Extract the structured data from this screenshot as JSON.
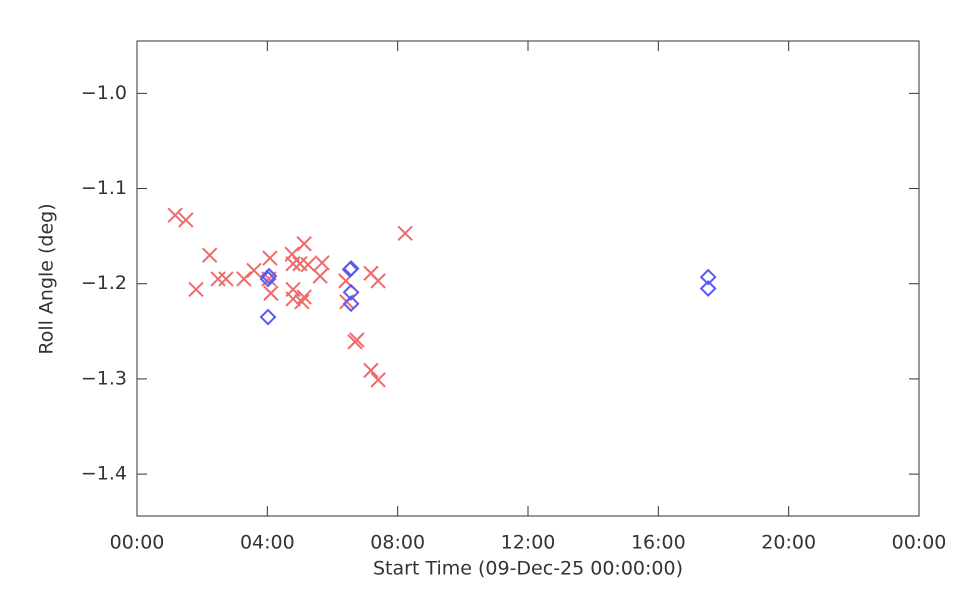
{
  "chart_data": {
    "type": "scatter",
    "xlabel": "Start Time (09-Dec-25 00:00:00)",
    "ylabel": "Roll Angle (deg)",
    "xlim": [
      0,
      24
    ],
    "xticks": [
      {
        "value": 0,
        "label": "00:00"
      },
      {
        "value": 4,
        "label": "04:00"
      },
      {
        "value": 8,
        "label": "08:00"
      },
      {
        "value": 12,
        "label": "12:00"
      },
      {
        "value": 16,
        "label": "16:00"
      },
      {
        "value": 20,
        "label": "20:00"
      },
      {
        "value": 24,
        "label": "00:00"
      }
    ],
    "ylim": [
      -1.444,
      -0.945
    ],
    "yticks": [
      {
        "value": -1.0,
        "label": "−1.0"
      },
      {
        "value": -1.1,
        "label": "−1.1"
      },
      {
        "value": -1.2,
        "label": "−1.2"
      },
      {
        "value": -1.3,
        "label": "−1.3"
      },
      {
        "value": -1.4,
        "label": "−1.4"
      }
    ],
    "series": [
      {
        "color": "#f06a6a",
        "marker": "x",
        "x": [
          1.17,
          1.5,
          1.81,
          2.23,
          2.49,
          2.73,
          3.28,
          3.59,
          4.08,
          4.11,
          4.05,
          4.76,
          4.79,
          4.79,
          4.79,
          5.0,
          5.06,
          5.13,
          5.13,
          5.25,
          5.68,
          5.62,
          6.41,
          6.44,
          6.69,
          6.75,
          7.18,
          7.4,
          7.18,
          7.4,
          8.23
        ],
        "values": [
          -1.128,
          -1.133,
          -1.206,
          -1.17,
          -1.195,
          -1.195,
          -1.195,
          -1.186,
          -1.173,
          -1.21,
          -1.195,
          -1.169,
          -1.179,
          -1.206,
          -1.216,
          -1.179,
          -1.219,
          -1.158,
          -1.214,
          -1.18,
          -1.178,
          -1.192,
          -1.197,
          -1.219,
          -1.261,
          -1.259,
          -1.189,
          -1.197,
          -1.291,
          -1.301,
          -1.147
        ]
      },
      {
        "color": "#5a5af0",
        "marker": "diamond",
        "x": [
          4.02,
          4.05,
          4.02,
          6.54,
          6.57,
          6.57,
          6.57,
          17.53,
          17.53
        ],
        "values": [
          -1.195,
          -1.192,
          -1.235,
          -1.185,
          -1.184,
          -1.209,
          -1.221,
          -1.193,
          -1.205
        ]
      }
    ]
  }
}
